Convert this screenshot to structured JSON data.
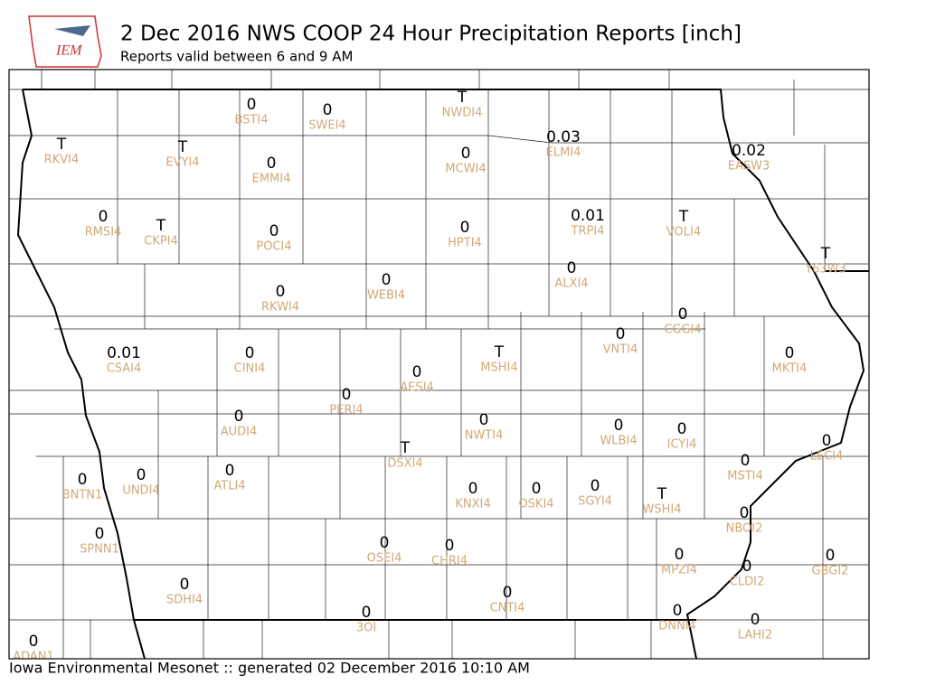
{
  "header": {
    "logo": "IEM",
    "title": "2 Dec 2016 NWS COOP 24 Hour Precipitation Reports [inch]",
    "subtitle": "Reports valid between 6 and 9 AM"
  },
  "footer": "Iowa Environmental Mesonet :: generated 02 December 2016 10:10 AM",
  "stations": [
    {
      "id": "BSTI4",
      "value": 0
    },
    {
      "id": "SWEI4",
      "value": 0
    },
    {
      "id": "NWDI4",
      "value": "T"
    },
    {
      "id": "RKVI4",
      "value": "T"
    },
    {
      "id": "EVYI4",
      "value": "T"
    },
    {
      "id": "EMMI4",
      "value": 0
    },
    {
      "id": "MCWI4",
      "value": 0
    },
    {
      "id": "ELMI4",
      "value": 0.03
    },
    {
      "id": "EASW3",
      "value": 0.02
    },
    {
      "id": "RMSI4",
      "value": 0
    },
    {
      "id": "CKPI4",
      "value": "T"
    },
    {
      "id": "POCI4",
      "value": 0
    },
    {
      "id": "HPTI4",
      "value": 0
    },
    {
      "id": "TRPI4",
      "value": 0.01
    },
    {
      "id": "VOLI4",
      "value": "T"
    },
    {
      "id": "Y63W3",
      "value": "T"
    },
    {
      "id": "ALXI4",
      "value": 0
    },
    {
      "id": "WEBI4",
      "value": 0
    },
    {
      "id": "RKWI4",
      "value": 0
    },
    {
      "id": "CGGI4",
      "value": 0
    },
    {
      "id": "VNTI4",
      "value": 0
    },
    {
      "id": "MKTI4",
      "value": 0
    },
    {
      "id": "CSAI4",
      "value": 0.01
    },
    {
      "id": "CINI4",
      "value": 0
    },
    {
      "id": "MSHI4",
      "value": "T"
    },
    {
      "id": "AESI4",
      "value": 0
    },
    {
      "id": "PERI4",
      "value": 0
    },
    {
      "id": "NWTI4",
      "value": 0
    },
    {
      "id": "WLBI4",
      "value": 0
    },
    {
      "id": "ICYI4",
      "value": 0
    },
    {
      "id": "AUDI4",
      "value": 0
    },
    {
      "id": "LECI4",
      "value": 0
    },
    {
      "id": "DSXI4",
      "value": "T"
    },
    {
      "id": "MSTI4",
      "value": 0
    },
    {
      "id": "BNTN1",
      "value": 0
    },
    {
      "id": "UNDI4",
      "value": 0
    },
    {
      "id": "ATLI4",
      "value": 0
    },
    {
      "id": "KNXI4",
      "value": 0
    },
    {
      "id": "OSKI4",
      "value": 0
    },
    {
      "id": "SGYI4",
      "value": 0
    },
    {
      "id": "WSHI4",
      "value": "T"
    },
    {
      "id": "NBOI2",
      "value": 0
    },
    {
      "id": "SPNN1",
      "value": 0
    },
    {
      "id": "OSEI4",
      "value": 0
    },
    {
      "id": "CHRI4",
      "value": 0
    },
    {
      "id": "MPZI4",
      "value": 0
    },
    {
      "id": "GBGI2",
      "value": 0
    },
    {
      "id": "CLDI2",
      "value": 0
    },
    {
      "id": "SDHI4",
      "value": 0
    },
    {
      "id": "CNTI4",
      "value": 0
    },
    {
      "id": "3OI",
      "value": 0
    },
    {
      "id": "DNNI4",
      "value": 0
    },
    {
      "id": "LAHI2",
      "value": 0
    },
    {
      "id": "ADAN1",
      "value": 0
    }
  ]
}
